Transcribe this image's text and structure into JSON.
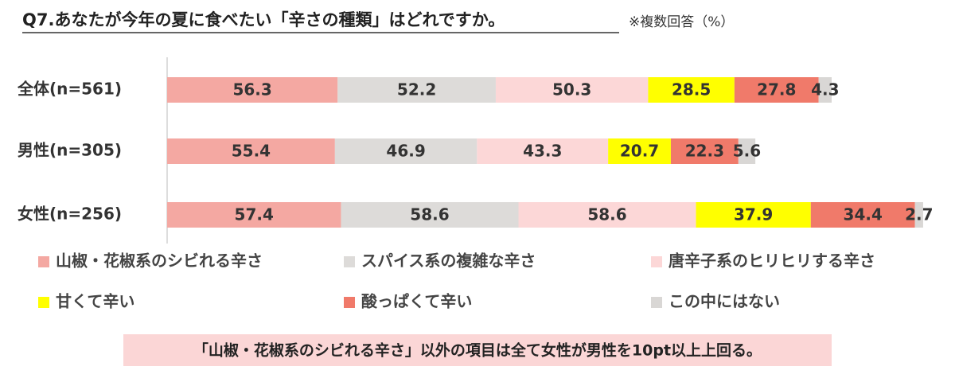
{
  "chart_data": {
    "type": "stacked-bar",
    "title": "Q7.あなたが今年の夏に食べたい「辛さの種類」はどれですか。",
    "subtitle": "※複数回答（%）",
    "categories": [
      "全体(n=561)",
      "男性(n=305)",
      "女性(n=256)"
    ],
    "series": [
      {
        "name": "山椒・花椒系のシビれる辛さ",
        "color": "#f4a8a2",
        "values": [
          56.3,
          55.4,
          57.4
        ]
      },
      {
        "name": "スパイス系の複雑な辛さ",
        "color": "#dddbd9",
        "values": [
          52.2,
          46.9,
          58.6
        ]
      },
      {
        "name": "唐辛子系のヒリヒリする辛さ",
        "color": "#fcd7d7",
        "values": [
          50.3,
          43.3,
          58.6
        ]
      },
      {
        "name": "甘くて辛い",
        "color": "#ffff00",
        "values": [
          28.5,
          20.7,
          37.9
        ]
      },
      {
        "name": "酸っぱくて辛い",
        "color": "#f07a6a",
        "values": [
          27.8,
          22.3,
          34.4
        ]
      },
      {
        "name": "この中にはない",
        "color": "#d9d7d5",
        "values": [
          4.3,
          5.6,
          2.7
        ]
      }
    ],
    "annotation": "「山椒・花椒系のシビれる辛さ」以外の項目は全て女性が男性を10pt以上上回る。"
  }
}
